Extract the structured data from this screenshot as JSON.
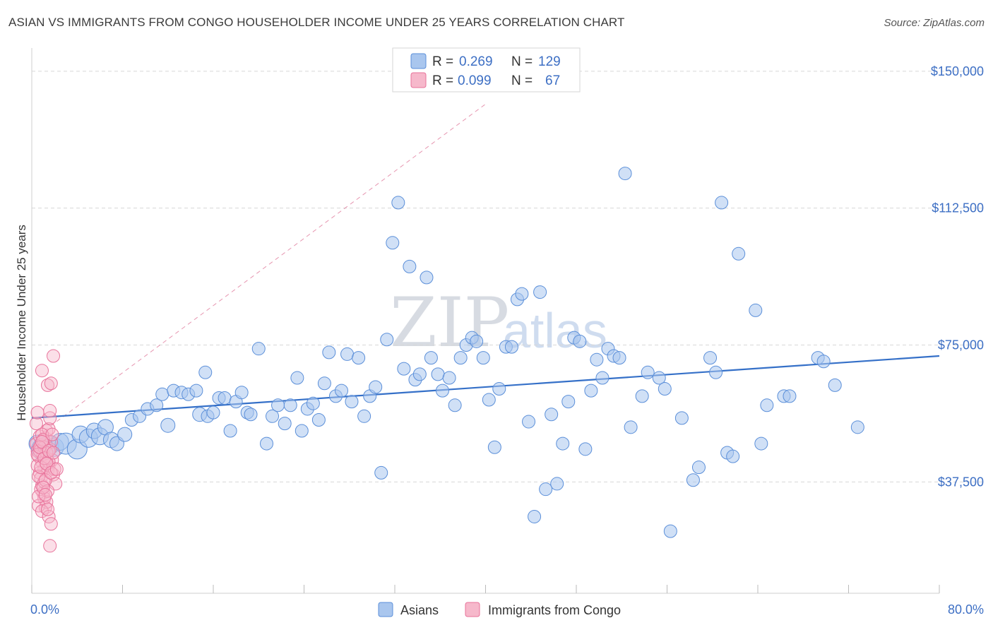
{
  "title": "ASIAN VS IMMIGRANTS FROM CONGO HOUSEHOLDER INCOME UNDER 25 YEARS CORRELATION CHART",
  "source": "Source: ZipAtlas.com",
  "colors": {
    "asian_fill": "#a9c6ee",
    "asian_stroke": "#5b8fd9",
    "asian_line": "#3570c8",
    "congo_fill": "#f6b8cb",
    "congo_stroke": "#e8729a",
    "congo_line": "#e07b9c",
    "grid": "#d8d8d8",
    "accent_text": "#3d6fc4"
  },
  "watermark": {
    "zip": "ZIP",
    "atlas": "atlas"
  },
  "legend": {
    "rows": [
      {
        "r_label": "R =",
        "r_value": "0.269",
        "n_label": "N =",
        "n_value": "129"
      },
      {
        "r_label": "R =",
        "r_value": "0.099",
        "n_label": "N =",
        "n_value": "67"
      }
    ]
  },
  "chart_data": {
    "type": "scatter",
    "title": "ASIAN VS IMMIGRANTS FROM CONGO HOUSEHOLDER INCOME UNDER 25 YEARS CORRELATION CHART",
    "xlabel": "",
    "ylabel": "Householder Income Under 25 years",
    "xlim": [
      0,
      80
    ],
    "ylim": [
      7000,
      155000
    ],
    "x_tick_labels": [
      "0.0%",
      "80.0%"
    ],
    "y_ticks": [
      37500,
      75000,
      112500,
      150000
    ],
    "y_tick_labels": [
      "$37,500",
      "$75,000",
      "$112,500",
      "$150,000"
    ],
    "series": [
      {
        "name": "Asians",
        "r": 0.269,
        "n": 129,
        "trend": {
          "x": [
            0,
            80
          ],
          "y": [
            55000,
            72000
          ]
        },
        "points": [
          [
            0.5,
            48000,
            12
          ],
          [
            1.0,
            46500,
            16
          ],
          [
            1.5,
            47500,
            14
          ],
          [
            2.0,
            47000,
            13
          ],
          [
            2.5,
            48500,
            12
          ],
          [
            3.0,
            48000,
            15
          ],
          [
            4.0,
            46500,
            14
          ],
          [
            4.3,
            50500,
            12
          ],
          [
            5.0,
            49500,
            13
          ],
          [
            5.5,
            51500,
            11
          ],
          [
            6.0,
            50000,
            12
          ],
          [
            6.5,
            52500,
            11
          ],
          [
            7.0,
            49000,
            11
          ],
          [
            7.5,
            48000,
            10
          ],
          [
            8.2,
            50500,
            10
          ],
          [
            8.8,
            54500,
            9
          ],
          [
            9.5,
            55500,
            9
          ],
          [
            10.2,
            57500,
            9
          ],
          [
            11.0,
            58500,
            9
          ],
          [
            11.5,
            61500,
            9
          ],
          [
            12.0,
            53000,
            10
          ],
          [
            12.5,
            62500,
            9
          ],
          [
            13.2,
            62000,
            9
          ],
          [
            13.8,
            61500,
            9
          ],
          [
            14.5,
            62500,
            9
          ],
          [
            14.8,
            56000,
            10
          ],
          [
            15.5,
            55500,
            9
          ],
          [
            15.3,
            67500,
            9
          ],
          [
            16.0,
            56500,
            9
          ],
          [
            16.5,
            60500,
            9
          ],
          [
            17.0,
            60500,
            9
          ],
          [
            17.5,
            51500,
            9
          ],
          [
            18.0,
            59500,
            9
          ],
          [
            18.5,
            62000,
            9
          ],
          [
            19.0,
            56500,
            9
          ],
          [
            19.3,
            56000,
            9
          ],
          [
            20.0,
            74000,
            9
          ],
          [
            20.7,
            48000,
            9
          ],
          [
            21.2,
            55500,
            9
          ],
          [
            21.7,
            58500,
            9
          ],
          [
            22.3,
            53500,
            9
          ],
          [
            22.8,
            58500,
            9
          ],
          [
            23.4,
            66000,
            9
          ],
          [
            23.8,
            51500,
            9
          ],
          [
            24.3,
            57500,
            9
          ],
          [
            24.8,
            59000,
            9
          ],
          [
            25.3,
            54500,
            9
          ],
          [
            25.8,
            64500,
            9
          ],
          [
            26.2,
            73000,
            9
          ],
          [
            26.8,
            61000,
            9
          ],
          [
            27.3,
            62500,
            9
          ],
          [
            27.8,
            72500,
            9
          ],
          [
            28.2,
            59500,
            9
          ],
          [
            28.8,
            71500,
            9
          ],
          [
            29.3,
            55500,
            9
          ],
          [
            29.8,
            61000,
            9
          ],
          [
            30.3,
            63500,
            9
          ],
          [
            30.8,
            40000,
            9
          ],
          [
            31.3,
            76500,
            9
          ],
          [
            31.8,
            103000,
            9
          ],
          [
            32.3,
            114000,
            9
          ],
          [
            32.8,
            68500,
            9
          ],
          [
            33.3,
            96500,
            9
          ],
          [
            33.8,
            65500,
            9
          ],
          [
            34.2,
            67000,
            9
          ],
          [
            34.8,
            93500,
            9
          ],
          [
            35.2,
            71500,
            9
          ],
          [
            35.8,
            67000,
            9
          ],
          [
            36.2,
            62500,
            9
          ],
          [
            36.8,
            66000,
            9
          ],
          [
            37.3,
            58500,
            9
          ],
          [
            37.8,
            71500,
            9
          ],
          [
            38.3,
            75000,
            9
          ],
          [
            38.8,
            77000,
            9
          ],
          [
            39.2,
            76000,
            9
          ],
          [
            39.8,
            71500,
            9
          ],
          [
            40.3,
            60000,
            9
          ],
          [
            40.8,
            47000,
            9
          ],
          [
            41.2,
            63000,
            9
          ],
          [
            41.8,
            74500,
            9
          ],
          [
            42.3,
            74500,
            9
          ],
          [
            42.8,
            87500,
            9
          ],
          [
            43.2,
            89000,
            9
          ],
          [
            43.8,
            54000,
            9
          ],
          [
            44.3,
            28000,
            9
          ],
          [
            44.8,
            89500,
            9
          ],
          [
            45.3,
            35500,
            9
          ],
          [
            45.8,
            56000,
            9
          ],
          [
            46.3,
            37000,
            9
          ],
          [
            46.8,
            48000,
            9
          ],
          [
            47.3,
            59500,
            9
          ],
          [
            47.8,
            77000,
            9
          ],
          [
            48.3,
            76000,
            9
          ],
          [
            48.8,
            46500,
            9
          ],
          [
            49.3,
            62500,
            9
          ],
          [
            49.8,
            71000,
            9
          ],
          [
            50.3,
            66000,
            9
          ],
          [
            50.8,
            74000,
            9
          ],
          [
            51.3,
            72000,
            9
          ],
          [
            51.8,
            71500,
            9
          ],
          [
            52.3,
            122000,
            9
          ],
          [
            52.8,
            52500,
            9
          ],
          [
            53.8,
            61000,
            9
          ],
          [
            54.3,
            67500,
            9
          ],
          [
            55.3,
            66000,
            9
          ],
          [
            55.8,
            63000,
            9
          ],
          [
            56.3,
            24000,
            9
          ],
          [
            57.3,
            55000,
            9
          ],
          [
            58.3,
            38000,
            9
          ],
          [
            58.8,
            41500,
            9
          ],
          [
            59.8,
            71500,
            9
          ],
          [
            60.3,
            67500,
            9
          ],
          [
            60.8,
            114000,
            9
          ],
          [
            61.3,
            45500,
            9
          ],
          [
            61.8,
            44500,
            9
          ],
          [
            62.3,
            100000,
            9
          ],
          [
            63.8,
            84500,
            9
          ],
          [
            64.3,
            48000,
            9
          ],
          [
            64.8,
            58500,
            9
          ],
          [
            66.3,
            61000,
            9
          ],
          [
            66.8,
            61000,
            9
          ],
          [
            69.3,
            71500,
            9
          ],
          [
            69.8,
            70500,
            9
          ],
          [
            70.8,
            64000,
            9
          ],
          [
            72.8,
            52500,
            9
          ]
        ]
      },
      {
        "name": "Immigrants from Congo",
        "r": 0.099,
        "n": 67,
        "trend": {
          "x": [
            0,
            40
          ],
          "y": [
            49000,
            141000
          ]
        },
        "points": [
          [
            0.4,
            48000,
            9
          ],
          [
            0.5,
            46000,
            9
          ],
          [
            0.6,
            44500,
            9
          ],
          [
            0.7,
            50000,
            9
          ],
          [
            0.8,
            47500,
            9
          ],
          [
            0.9,
            43000,
            9
          ],
          [
            1.0,
            45000,
            9
          ],
          [
            1.1,
            41000,
            9
          ],
          [
            1.2,
            49500,
            9
          ],
          [
            1.3,
            51500,
            9
          ],
          [
            0.4,
            53500,
            9
          ],
          [
            0.5,
            56500,
            9
          ],
          [
            0.7,
            40000,
            9
          ],
          [
            0.8,
            38500,
            9
          ],
          [
            0.9,
            36500,
            9
          ],
          [
            1.0,
            34500,
            9
          ],
          [
            1.1,
            33000,
            9
          ],
          [
            1.2,
            30500,
            9
          ],
          [
            1.3,
            32000,
            9
          ],
          [
            1.4,
            40500,
            9
          ],
          [
            1.5,
            42000,
            9
          ],
          [
            1.6,
            46500,
            9
          ],
          [
            1.7,
            48500,
            9
          ],
          [
            1.8,
            43500,
            9
          ],
          [
            1.9,
            39500,
            9
          ],
          [
            0.6,
            31000,
            9
          ],
          [
            0.8,
            35500,
            9
          ],
          [
            0.9,
            29500,
            9
          ],
          [
            1.1,
            37500,
            9
          ],
          [
            1.3,
            44000,
            9
          ],
          [
            1.5,
            52000,
            9
          ],
          [
            1.6,
            55000,
            9
          ],
          [
            1.4,
            64000,
            9
          ],
          [
            1.7,
            64500,
            9
          ],
          [
            0.9,
            68000,
            9
          ],
          [
            1.9,
            72000,
            9
          ],
          [
            1.5,
            28000,
            9
          ],
          [
            1.7,
            26000,
            9
          ],
          [
            1.6,
            20000,
            9
          ],
          [
            2.0,
            41000,
            9
          ],
          [
            2.1,
            37000,
            9
          ],
          [
            0.5,
            42000,
            9
          ],
          [
            0.7,
            46000,
            9
          ],
          [
            0.9,
            50500,
            9
          ],
          [
            1.1,
            47000,
            9
          ],
          [
            1.3,
            45500,
            9
          ],
          [
            1.5,
            43000,
            9
          ],
          [
            0.6,
            39000,
            9
          ],
          [
            0.8,
            41500,
            9
          ],
          [
            1.0,
            49000,
            9
          ],
          [
            1.2,
            38000,
            9
          ],
          [
            1.4,
            35000,
            9
          ],
          [
            1.6,
            57000,
            9
          ],
          [
            1.8,
            50500,
            9
          ],
          [
            0.5,
            45000,
            9
          ],
          [
            0.7,
            47000,
            9
          ],
          [
            0.9,
            48500,
            9
          ],
          [
            1.1,
            44000,
            9
          ],
          [
            1.3,
            42500,
            9
          ],
          [
            1.5,
            46000,
            9
          ],
          [
            1.7,
            40000,
            9
          ],
          [
            1.9,
            45500,
            9
          ],
          [
            2.2,
            41000,
            9
          ],
          [
            0.6,
            33500,
            9
          ],
          [
            1.0,
            36000,
            9
          ],
          [
            1.2,
            34000,
            9
          ],
          [
            1.4,
            30000,
            9
          ]
        ]
      }
    ]
  },
  "bottom_legend": {
    "asians": "Asians",
    "congo": "Immigrants from Congo"
  }
}
